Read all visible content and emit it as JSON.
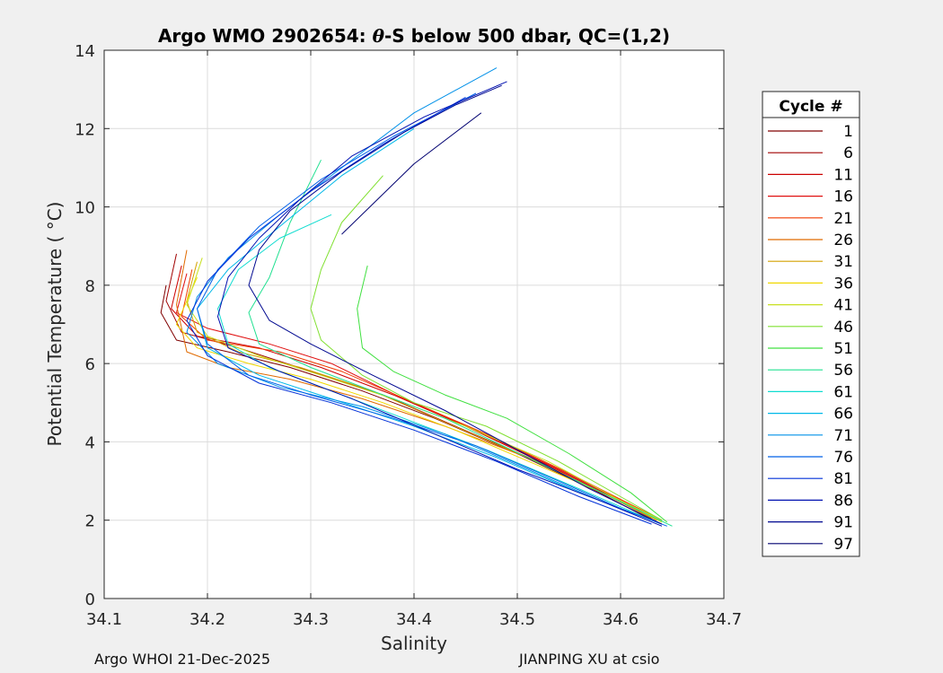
{
  "chart_data": {
    "type": "line",
    "title_prefix": "Argo WMO 2902654: ",
    "title_theta": "θ",
    "title_suffix": "-S below 500 dbar,  QC=(1,2)",
    "xlabel": "Salinity",
    "ylabel": "Potential Temperature ( °C)",
    "xlim": [
      34.1,
      34.7
    ],
    "ylim": [
      0,
      14
    ],
    "xticks": [
      "34.1",
      "34.2",
      "34.3",
      "34.4",
      "34.5",
      "34.6",
      "34.7"
    ],
    "yticks": [
      "0",
      "2",
      "4",
      "6",
      "8",
      "10",
      "12",
      "14"
    ],
    "grid": true,
    "legend": {
      "title": "Cycle #",
      "placement": "outside-right",
      "entries": [
        {
          "label": "1",
          "color": "#800000"
        },
        {
          "label": "6",
          "color": "#a00000"
        },
        {
          "label": "11",
          "color": "#cc0000"
        },
        {
          "label": "16",
          "color": "#e01010"
        },
        {
          "label": "21",
          "color": "#f03a00"
        },
        {
          "label": "26",
          "color": "#e06a00"
        },
        {
          "label": "31",
          "color": "#d4a000"
        },
        {
          "label": "36",
          "color": "#f0d800"
        },
        {
          "label": "41",
          "color": "#c8e020"
        },
        {
          "label": "46",
          "color": "#80e030"
        },
        {
          "label": "51",
          "color": "#40e040"
        },
        {
          "label": "56",
          "color": "#20e090"
        },
        {
          "label": "61",
          "color": "#10dcd0"
        },
        {
          "label": "66",
          "color": "#00b8e8"
        },
        {
          "label": "71",
          "color": "#0090e8"
        },
        {
          "label": "76",
          "color": "#0060e8"
        },
        {
          "label": "81",
          "color": "#0030d8"
        },
        {
          "label": "86",
          "color": "#0010b0"
        },
        {
          "label": "91",
          "color": "#000890"
        },
        {
          "label": "97",
          "color": "#000070"
        }
      ]
    },
    "series": [
      {
        "name": "1",
        "points": [
          [
            34.16,
            8.0
          ],
          [
            34.155,
            7.3
          ],
          [
            34.17,
            6.6
          ],
          [
            34.22,
            6.3
          ],
          [
            34.28,
            5.9
          ],
          [
            34.35,
            5.3
          ],
          [
            34.42,
            4.6
          ],
          [
            34.5,
            3.7
          ],
          [
            34.58,
            2.7
          ],
          [
            34.63,
            2.0
          ]
        ]
      },
      {
        "name": "6",
        "points": [
          [
            34.17,
            8.8
          ],
          [
            34.16,
            7.6
          ],
          [
            34.175,
            6.8
          ],
          [
            34.23,
            6.4
          ],
          [
            34.3,
            5.8
          ],
          [
            34.37,
            5.2
          ],
          [
            34.44,
            4.4
          ],
          [
            34.52,
            3.5
          ],
          [
            34.59,
            2.6
          ],
          [
            34.63,
            2.05
          ]
        ]
      },
      {
        "name": "11",
        "points": [
          [
            34.175,
            8.5
          ],
          [
            34.165,
            7.4
          ],
          [
            34.19,
            6.7
          ],
          [
            34.25,
            6.4
          ],
          [
            34.31,
            5.9
          ],
          [
            34.38,
            5.2
          ],
          [
            34.45,
            4.4
          ],
          [
            34.53,
            3.4
          ],
          [
            34.6,
            2.5
          ],
          [
            34.635,
            2.0
          ]
        ]
      },
      {
        "name": "16",
        "points": [
          [
            34.18,
            8.3
          ],
          [
            34.17,
            7.3
          ],
          [
            34.2,
            6.9
          ],
          [
            34.26,
            6.5
          ],
          [
            34.32,
            6.0
          ],
          [
            34.39,
            5.1
          ],
          [
            34.46,
            4.3
          ],
          [
            34.54,
            3.3
          ],
          [
            34.61,
            2.4
          ],
          [
            34.64,
            2.0
          ]
        ]
      },
      {
        "name": "21",
        "points": [
          [
            34.185,
            8.4
          ],
          [
            34.175,
            7.2
          ],
          [
            34.2,
            6.6
          ],
          [
            34.27,
            6.3
          ],
          [
            34.33,
            5.8
          ],
          [
            34.4,
            5.0
          ],
          [
            34.47,
            4.2
          ],
          [
            34.55,
            3.2
          ],
          [
            34.61,
            2.4
          ],
          [
            34.64,
            2.0
          ]
        ]
      },
      {
        "name": "26",
        "points": [
          [
            34.18,
            8.9
          ],
          [
            34.17,
            7.5
          ],
          [
            34.18,
            6.3
          ],
          [
            34.22,
            5.9
          ],
          [
            34.28,
            5.6
          ],
          [
            34.35,
            5.1
          ],
          [
            34.43,
            4.4
          ],
          [
            34.52,
            3.5
          ],
          [
            34.59,
            2.6
          ],
          [
            34.63,
            2.05
          ]
        ]
      },
      {
        "name": "31",
        "points": [
          [
            34.19,
            8.6
          ],
          [
            34.18,
            7.6
          ],
          [
            34.19,
            6.8
          ],
          [
            34.23,
            6.3
          ],
          [
            34.29,
            5.9
          ],
          [
            34.36,
            5.3
          ],
          [
            34.43,
            4.5
          ],
          [
            34.51,
            3.6
          ],
          [
            34.59,
            2.6
          ],
          [
            34.635,
            2.0
          ]
        ]
      },
      {
        "name": "36",
        "points": [
          [
            34.19,
            8.2
          ],
          [
            34.17,
            7.0
          ],
          [
            34.19,
            6.4
          ],
          [
            34.24,
            6.0
          ],
          [
            34.3,
            5.6
          ],
          [
            34.37,
            5.0
          ],
          [
            34.44,
            4.3
          ],
          [
            34.52,
            3.4
          ],
          [
            34.6,
            2.5
          ],
          [
            34.64,
            1.95
          ]
        ]
      },
      {
        "name": "41",
        "points": [
          [
            34.195,
            8.7
          ],
          [
            34.18,
            7.5
          ],
          [
            34.2,
            6.7
          ],
          [
            34.25,
            6.2
          ],
          [
            34.31,
            5.7
          ],
          [
            34.38,
            5.1
          ],
          [
            34.45,
            4.4
          ],
          [
            34.53,
            3.5
          ],
          [
            34.6,
            2.5
          ],
          [
            34.64,
            2.0
          ]
        ]
      },
      {
        "name": "46",
        "points": [
          [
            34.37,
            10.8
          ],
          [
            34.33,
            9.6
          ],
          [
            34.31,
            8.4
          ],
          [
            34.3,
            7.4
          ],
          [
            34.31,
            6.6
          ],
          [
            34.35,
            5.7
          ],
          [
            34.4,
            5.0
          ],
          [
            34.47,
            4.4
          ],
          [
            34.54,
            3.5
          ],
          [
            34.6,
            2.6
          ],
          [
            34.64,
            2.0
          ]
        ]
      },
      {
        "name": "51",
        "points": [
          [
            34.355,
            8.5
          ],
          [
            34.345,
            7.4
          ],
          [
            34.35,
            6.4
          ],
          [
            34.38,
            5.8
          ],
          [
            34.43,
            5.2
          ],
          [
            34.49,
            4.6
          ],
          [
            34.55,
            3.7
          ],
          [
            34.61,
            2.7
          ],
          [
            34.645,
            1.95
          ]
        ]
      },
      {
        "name": "56",
        "points": [
          [
            34.31,
            11.2
          ],
          [
            34.28,
            9.6
          ],
          [
            34.26,
            8.2
          ],
          [
            34.24,
            7.3
          ],
          [
            34.25,
            6.5
          ],
          [
            34.3,
            5.9
          ],
          [
            34.36,
            5.3
          ],
          [
            34.43,
            4.6
          ],
          [
            34.51,
            3.6
          ],
          [
            34.59,
            2.6
          ],
          [
            34.65,
            1.85
          ]
        ]
      },
      {
        "name": "61",
        "points": [
          [
            34.32,
            9.8
          ],
          [
            34.27,
            9.2
          ],
          [
            34.23,
            8.4
          ],
          [
            34.21,
            7.4
          ],
          [
            34.22,
            6.5
          ],
          [
            34.26,
            5.9
          ],
          [
            34.32,
            5.3
          ],
          [
            34.39,
            4.6
          ],
          [
            34.47,
            3.8
          ],
          [
            34.56,
            2.8
          ],
          [
            34.63,
            2.0
          ]
        ]
      },
      {
        "name": "66",
        "points": [
          [
            34.4,
            12.0
          ],
          [
            34.33,
            10.8
          ],
          [
            34.27,
            9.5
          ],
          [
            34.22,
            8.4
          ],
          [
            34.19,
            7.4
          ],
          [
            34.2,
            6.4
          ],
          [
            34.25,
            5.7
          ],
          [
            34.32,
            5.1
          ],
          [
            34.4,
            4.4
          ],
          [
            34.48,
            3.6
          ],
          [
            34.56,
            2.7
          ],
          [
            34.63,
            2.0
          ]
        ]
      },
      {
        "name": "71",
        "points": [
          [
            34.48,
            13.55
          ],
          [
            34.4,
            12.4
          ],
          [
            34.33,
            11.0
          ],
          [
            34.27,
            9.8
          ],
          [
            34.22,
            8.7
          ],
          [
            34.19,
            7.7
          ],
          [
            34.18,
            6.8
          ],
          [
            34.21,
            6.0
          ],
          [
            34.27,
            5.4
          ],
          [
            34.35,
            4.9
          ],
          [
            34.43,
            4.2
          ],
          [
            34.51,
            3.3
          ],
          [
            34.58,
            2.5
          ],
          [
            34.64,
            1.9
          ]
        ]
      },
      {
        "name": "76",
        "points": [
          [
            34.46,
            12.9
          ],
          [
            34.38,
            11.8
          ],
          [
            34.31,
            10.7
          ],
          [
            34.25,
            9.5
          ],
          [
            34.21,
            8.4
          ],
          [
            34.19,
            7.4
          ],
          [
            34.2,
            6.5
          ],
          [
            34.24,
            5.7
          ],
          [
            34.3,
            5.2
          ],
          [
            34.38,
            4.6
          ],
          [
            34.46,
            3.9
          ],
          [
            34.54,
            3.0
          ],
          [
            34.6,
            2.3
          ],
          [
            34.645,
            1.85
          ]
        ]
      },
      {
        "name": "81",
        "points": [
          [
            34.45,
            12.8
          ],
          [
            34.37,
            11.6
          ],
          [
            34.3,
            10.4
          ],
          [
            34.24,
            9.2
          ],
          [
            34.2,
            8.1
          ],
          [
            34.18,
            7.1
          ],
          [
            34.2,
            6.2
          ],
          [
            34.25,
            5.5
          ],
          [
            34.32,
            5.0
          ],
          [
            34.4,
            4.3
          ],
          [
            34.48,
            3.5
          ],
          [
            34.56,
            2.6
          ],
          [
            34.63,
            1.9
          ]
        ]
      },
      {
        "name": "86",
        "points": [
          [
            34.49,
            13.2
          ],
          [
            34.41,
            12.3
          ],
          [
            34.34,
            11.3
          ],
          [
            34.29,
            10.2
          ],
          [
            34.25,
            9.2
          ],
          [
            34.22,
            8.2
          ],
          [
            34.21,
            7.2
          ],
          [
            34.22,
            6.4
          ],
          [
            34.27,
            5.8
          ],
          [
            34.34,
            5.1
          ],
          [
            34.42,
            4.2
          ],
          [
            34.5,
            3.3
          ],
          [
            34.58,
            2.5
          ],
          [
            34.64,
            1.85
          ]
        ]
      },
      {
        "name": "91",
        "points": [
          [
            34.485,
            13.1
          ],
          [
            34.44,
            12.6
          ],
          [
            34.39,
            11.9
          ],
          [
            34.33,
            10.9
          ],
          [
            34.28,
            9.9
          ],
          [
            34.25,
            8.9
          ],
          [
            34.24,
            8.0
          ],
          [
            34.26,
            7.1
          ],
          [
            34.3,
            6.5
          ],
          [
            34.36,
            5.7
          ],
          [
            34.43,
            4.8
          ],
          [
            34.5,
            3.8
          ],
          [
            34.57,
            2.8
          ],
          [
            34.64,
            1.9
          ]
        ]
      },
      {
        "name": "97",
        "points": [
          [
            34.465,
            12.4
          ],
          [
            34.4,
            11.1
          ],
          [
            34.33,
            9.3
          ]
        ]
      }
    ]
  },
  "footer": {
    "left": "Argo WHOI 21-Dec-2025",
    "right": "JIANPING XU at csio"
  }
}
